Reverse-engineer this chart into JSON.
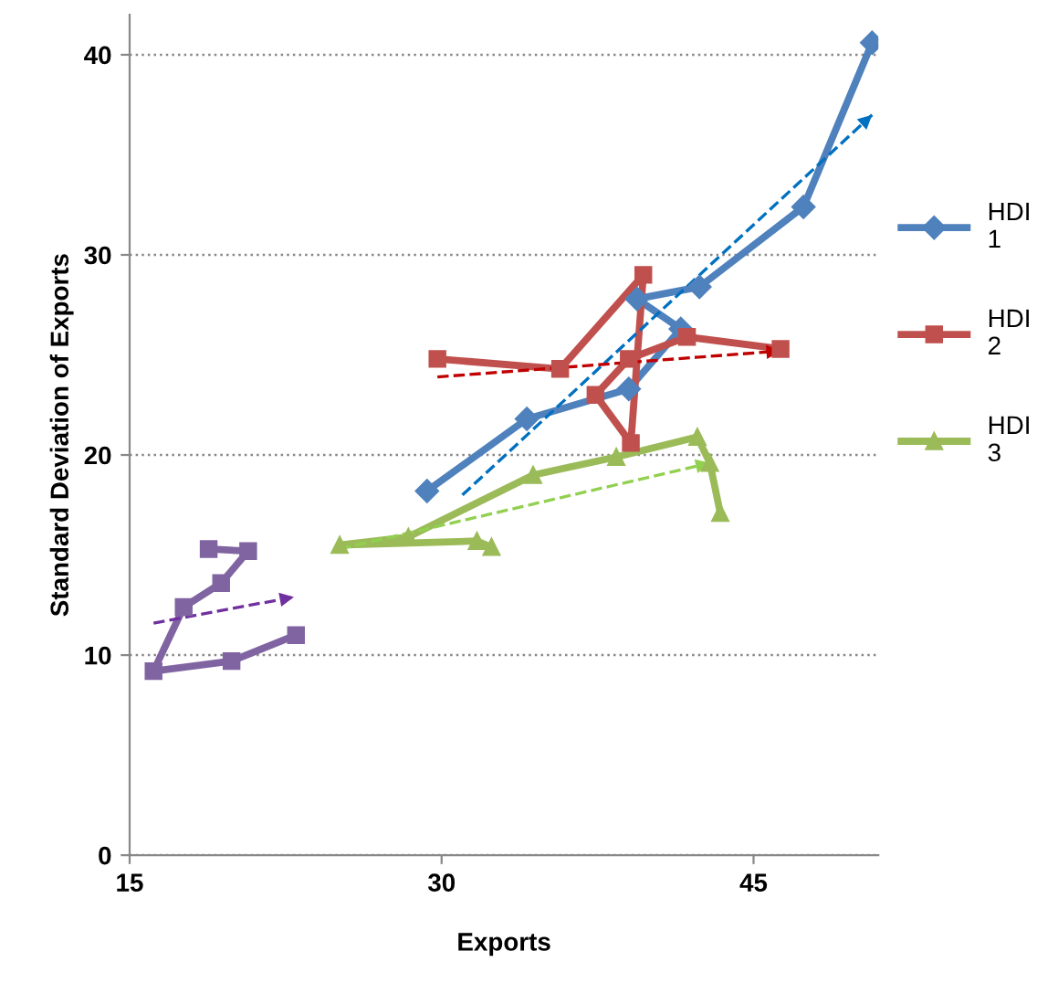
{
  "chart_data": {
    "type": "line",
    "xlabel": "Exports",
    "ylabel": "Standard Deviation of Exports",
    "xlim": [
      15,
      51
    ],
    "ylim": [
      0,
      42
    ],
    "xticks": [
      15,
      30,
      45
    ],
    "yticks": [
      0,
      10,
      20,
      30,
      40
    ],
    "grid": "y",
    "legend": "right",
    "line_style": "solid",
    "series": [
      {
        "name": "HDI 1",
        "color": "#4f81bd",
        "marker": "diamond",
        "x": [
          29.3,
          34.1,
          39.0,
          41.5,
          39.4,
          42.4,
          47.4,
          50.7
        ],
        "values": [
          18.2,
          21.8,
          23.3,
          26.3,
          27.8,
          28.4,
          32.4,
          40.6
        ]
      },
      {
        "name": "HDI 2",
        "color": "#c0504d",
        "marker": "square",
        "x": [
          29.8,
          35.7,
          39.7,
          39.1,
          37.4,
          39.0,
          41.8,
          46.3
        ],
        "values": [
          24.8,
          24.3,
          29.0,
          20.6,
          23.0,
          24.8,
          25.9,
          25.3
        ]
      },
      {
        "name": "HDI 3",
        "color": "#9bbb59",
        "marker": "triangle",
        "x": [
          32.4,
          31.7,
          25.1,
          28.4,
          34.4,
          38.4,
          42.3,
          42.9,
          43.4
        ],
        "values": [
          15.4,
          15.7,
          15.5,
          15.9,
          19.0,
          19.9,
          20.9,
          19.6,
          17.1
        ]
      },
      {
        "color": "#8064a2",
        "marker": "square",
        "x": [
          18.8,
          20.7,
          19.4,
          17.6,
          16.15,
          19.9,
          23.0
        ],
        "values": [
          15.3,
          15.2,
          13.6,
          12.4,
          9.2,
          9.7,
          11.0
        ]
      },
      {
        "color": "#0070c0",
        "marker": "none",
        "line_style": "dashed",
        "x": [
          31.0,
          50.7
        ],
        "values": [
          18.0,
          37.0
        ]
      },
      {
        "color": "#c00000",
        "marker": "none",
        "line_style": "dashed",
        "x": [
          29.8,
          46.3
        ],
        "values": [
          23.9,
          25.2
        ]
      },
      {
        "color": "#92d050",
        "marker": "none",
        "line_style": "dashed",
        "x": [
          25.1,
          42.9
        ],
        "values": [
          15.3,
          19.6
        ]
      },
      {
        "color": "#7030a0",
        "marker": "none",
        "line_style": "dashed",
        "x": [
          16.15,
          22.9
        ],
        "values": [
          11.6,
          12.9
        ]
      }
    ]
  }
}
